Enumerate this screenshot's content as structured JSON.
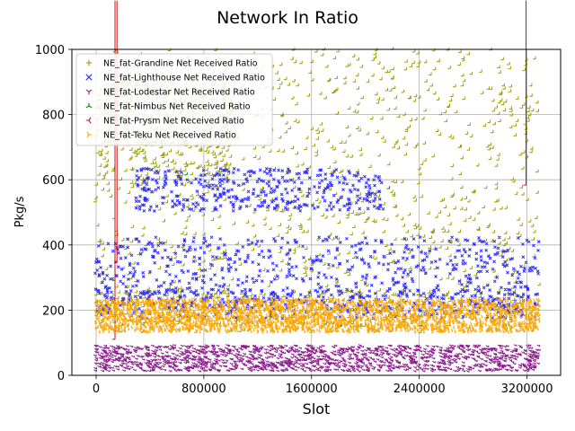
{
  "chart_data": {
    "type": "scatter",
    "title": "Network In Ratio",
    "xlabel": "Slot",
    "ylabel": "Pkg/s",
    "xlim": [
      -180000,
      3450000
    ],
    "ylim": [
      0,
      1000
    ],
    "xticks": [
      0,
      800000,
      1600000,
      2400000,
      3200000
    ],
    "yticks": [
      0,
      200,
      400,
      600,
      800,
      1000
    ],
    "grid": true,
    "legend_position": "upper-left",
    "series": [
      {
        "name": "NE_fat-Grandine Net Received Ratio",
        "marker": "+",
        "color": "#9a9a00",
        "x_range": [
          0,
          3300000
        ],
        "clusters": [
          {
            "x": [
              0,
              3300000
            ],
            "y": [
              130,
              1000
            ],
            "count": 1100
          },
          {
            "x": [
              0,
              1000000
            ],
            "y": [
              600,
              900
            ],
            "count": 300
          },
          {
            "x": [
              0,
              3300000
            ],
            "y": [
              150,
              260
            ],
            "count": 300
          }
        ]
      },
      {
        "name": "NE_fat-Lighthouse Net Received Ratio",
        "marker": "x",
        "color": "#2b2bff",
        "x_range": [
          0,
          3300000
        ],
        "clusters": [
          {
            "x": [
              0,
              3300000
            ],
            "y": [
              200,
              420
            ],
            "count": 700
          },
          {
            "x": [
              300000,
              2150000
            ],
            "y": [
              500,
              630
            ],
            "count": 400
          },
          {
            "x": [
              0,
              3300000
            ],
            "y": [
              170,
              260
            ],
            "count": 300
          }
        ]
      },
      {
        "name": "NE_fat-Lodestar Net Received Ratio",
        "marker": "tri_down",
        "color": "#8b1a8b",
        "x_range": [
          0,
          3300000
        ],
        "clusters": [
          {
            "x": [
              0,
              3300000
            ],
            "y": [
              10,
              90
            ],
            "count": 1500
          }
        ]
      },
      {
        "name": "NE_fat-Nimbus Net Received Ratio",
        "marker": "tri_up",
        "color": "#008000",
        "x_range": [
          0,
          3300000
        ],
        "clusters": [
          {
            "x": [
              0,
              3300000
            ],
            "y": [
              100,
              250
            ],
            "count": 250
          },
          {
            "x": [
              600000,
              760000
            ],
            "y": [
              560,
              630
            ],
            "count": 40
          },
          {
            "x": [
              1950000,
              2450000
            ],
            "y": [
              540,
              610
            ],
            "count": 40
          }
        ]
      },
      {
        "name": "NE_fat-Prysm Net Received Ratio",
        "marker": "tri_left",
        "color": "#cc1111",
        "x_range": [
          0,
          3300000
        ],
        "clusters": [
          {
            "x": [
              0,
              3300000
            ],
            "y": [
              50,
              250
            ],
            "count": 1800
          },
          {
            "x": [
              0,
              200000
            ],
            "y": [
              200,
              520
            ],
            "count": 150
          },
          {
            "x": [
              1000000,
              3300000
            ],
            "y": [
              430,
              600
            ],
            "count": 120
          }
        ]
      },
      {
        "name": "NE_fat-Teku Net Received Ratio",
        "marker": "tri_right",
        "color": "#ffa500",
        "x_range": [
          0,
          3300000
        ],
        "clusters": [
          {
            "x": [
              0,
              3300000
            ],
            "y": [
              130,
              230
            ],
            "count": 2600
          }
        ]
      }
    ]
  }
}
